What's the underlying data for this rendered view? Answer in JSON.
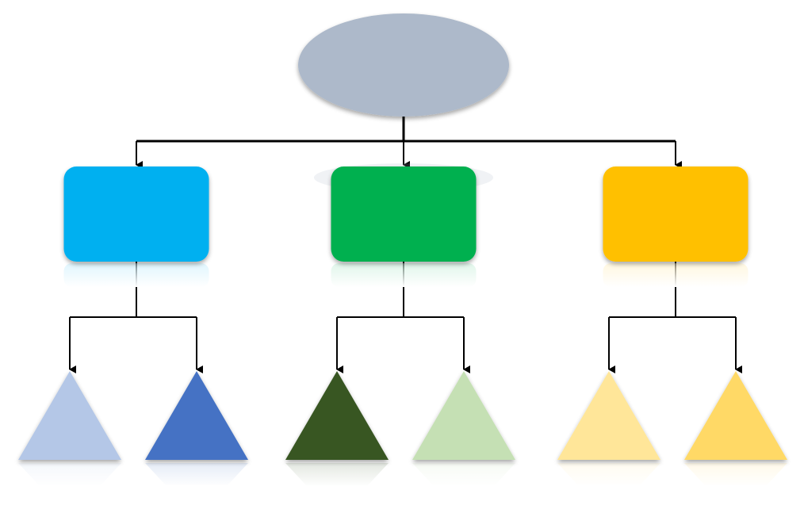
{
  "diagram": {
    "type": "hierarchy",
    "root": {
      "shape": "ellipse",
      "color": "#ADB9CA",
      "label": ""
    },
    "branches": [
      {
        "shape": "rounded-rect",
        "color": "#00B0F0",
        "label": "",
        "children": [
          {
            "shape": "triangle",
            "color": "#B4C7E7",
            "label": ""
          },
          {
            "shape": "triangle",
            "color": "#4472C4",
            "label": ""
          }
        ]
      },
      {
        "shape": "rounded-rect",
        "color": "#00B050",
        "label": "",
        "children": [
          {
            "shape": "triangle",
            "color": "#375623",
            "label": ""
          },
          {
            "shape": "triangle",
            "color": "#C5E0B4",
            "label": ""
          }
        ]
      },
      {
        "shape": "rounded-rect",
        "color": "#FFC000",
        "label": "",
        "children": [
          {
            "shape": "triangle",
            "color": "#FFE699",
            "label": ""
          },
          {
            "shape": "triangle",
            "color": "#FFD966",
            "label": ""
          }
        ]
      }
    ],
    "connector_color": "#000000"
  }
}
